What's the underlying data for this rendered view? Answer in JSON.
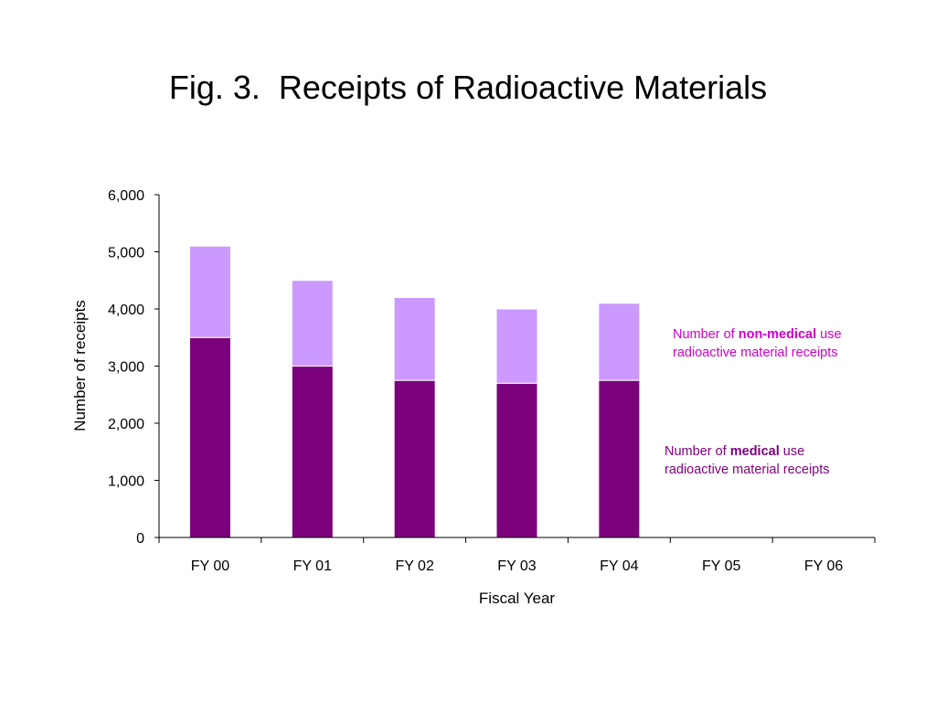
{
  "chart_data": {
    "type": "bar",
    "stacked": true,
    "title": "Fig. 3.  Receipts of Radioactive Materials",
    "xlabel": "Fiscal Year",
    "ylabel": "Number of receipts",
    "ylim": [
      0,
      6000
    ],
    "yticks": [
      "0",
      "1,000",
      "2,000",
      "3,000",
      "4,000",
      "5,000",
      "6,000"
    ],
    "ytick_values": [
      0,
      1000,
      2000,
      3000,
      4000,
      5000,
      6000
    ],
    "grid": false,
    "categories": [
      "FY 00",
      "FY 01",
      "FY 02",
      "FY 03",
      "FY 04",
      "FY 05",
      "FY 06"
    ],
    "series": [
      {
        "key": "medical",
        "color": "#7b007b",
        "values": [
          3500,
          3000,
          2750,
          2700,
          2750,
          null,
          null
        ]
      },
      {
        "key": "non_medical",
        "color": "#cc99ff",
        "values": [
          1600,
          1500,
          1450,
          1300,
          1350,
          null,
          null
        ]
      }
    ],
    "annotations": {
      "non_medical": {
        "color": "#cc00cc",
        "prefix": "Number of ",
        "bold": "non-medical",
        "suffix": " use",
        "line2": "radioactive material receipts"
      },
      "medical": {
        "color": "#800080",
        "prefix": "Number of ",
        "bold": "medical",
        "suffix": " use",
        "line2": "radioactive material receipts"
      }
    }
  }
}
